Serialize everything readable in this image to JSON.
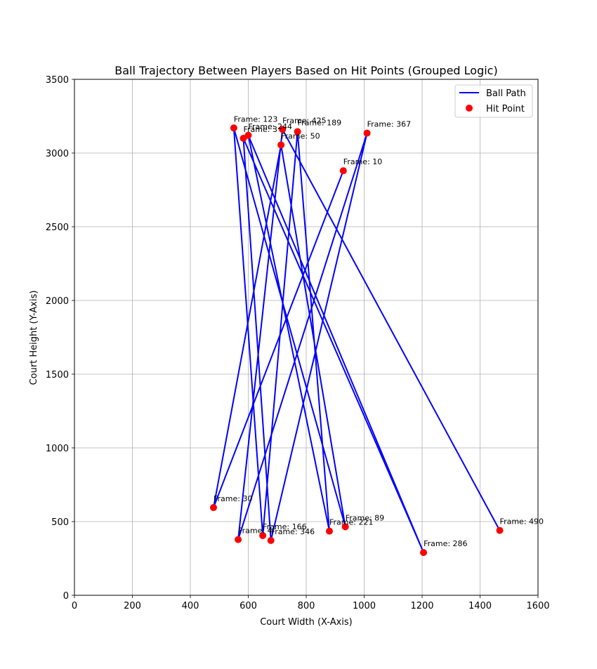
{
  "chart_data": {
    "type": "line",
    "title": "Ball Trajectory Between Players Based on Hit Points (Grouped Logic)",
    "xlabel": "Court Width (X-Axis)",
    "ylabel": "Court Height (Y-Axis)",
    "xlim": [
      0,
      1600
    ],
    "ylim": [
      0,
      3500
    ],
    "xticks": [
      0,
      200,
      400,
      600,
      800,
      1000,
      1200,
      1400,
      1600
    ],
    "yticks": [
      0,
      500,
      1000,
      1500,
      2000,
      2500,
      3000,
      3500
    ],
    "grid": true,
    "legend_position": "top-right",
    "legend": [
      {
        "name": "Ball Path",
        "kind": "line",
        "color": "#0000ff"
      },
      {
        "name": "Hit Point",
        "kind": "marker",
        "color": "#ff0000"
      }
    ],
    "path_color": "#0000ff",
    "point_color": "#ff0000",
    "points": [
      {
        "x": 928,
        "y": 2880,
        "label": "Frame: 10"
      },
      {
        "x": 480,
        "y": 595,
        "label": "Frame: 30"
      },
      {
        "x": 713,
        "y": 3055,
        "label": "Frame: 50"
      },
      {
        "x": 935,
        "y": 465,
        "label": "Frame: 89"
      },
      {
        "x": 550,
        "y": 3170,
        "label": "Frame: 123"
      },
      {
        "x": 650,
        "y": 405,
        "label": "Frame: 166"
      },
      {
        "x": 770,
        "y": 3145,
        "label": "Frame: 189"
      },
      {
        "x": 880,
        "y": 435,
        "label": "Frame: 221"
      },
      {
        "x": 600,
        "y": 3120,
        "label": "Frame: 244"
      },
      {
        "x": 1205,
        "y": 290,
        "label": "Frame: 286"
      },
      {
        "x": 583,
        "y": 3100,
        "label": "Frame: 3"
      },
      {
        "x": 678,
        "y": 372,
        "label": "Frame: 346"
      },
      {
        "x": 1010,
        "y": 3135,
        "label": "Frame: 367"
      },
      {
        "x": 565,
        "y": 378,
        "label": "Frame: 4"
      },
      {
        "x": 718,
        "y": 3160,
        "label": "Frame: 425"
      },
      {
        "x": 1468,
        "y": 440,
        "label": "Frame: 490"
      }
    ]
  }
}
